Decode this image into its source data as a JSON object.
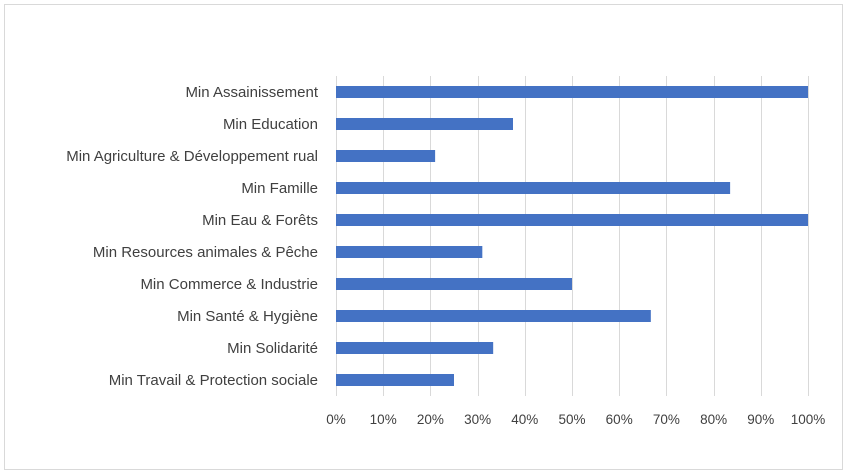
{
  "chart_data": {
    "type": "bar",
    "orientation": "horizontal",
    "title": "",
    "xlabel": "",
    "ylabel": "",
    "categories": [
      "Min Assainissement",
      "Min Education",
      "Min Agriculture & Développement rual",
      "Min Famille",
      "Min Eau & Forêts",
      "Min Resources animales & Pêche",
      "Min Commerce & Industrie",
      "Min Santé & Hygiène",
      "Min Solidarité",
      "Min Travail & Protection sociale"
    ],
    "values": [
      1.0,
      0.375,
      0.21,
      0.835,
      1.0,
      0.31,
      0.5,
      0.667,
      0.333,
      0.25
    ],
    "xlim": [
      0,
      1
    ],
    "xticks": [
      0,
      0.1,
      0.2,
      0.3,
      0.4,
      0.5,
      0.6,
      0.7,
      0.8,
      0.9,
      1.0
    ],
    "xtick_labels": [
      "0%",
      "10%",
      "20%",
      "30%",
      "40%",
      "50%",
      "60%",
      "70%",
      "80%",
      "90%",
      "100%"
    ],
    "grid": true,
    "legend": "none",
    "bar_color": "#4472C4"
  }
}
